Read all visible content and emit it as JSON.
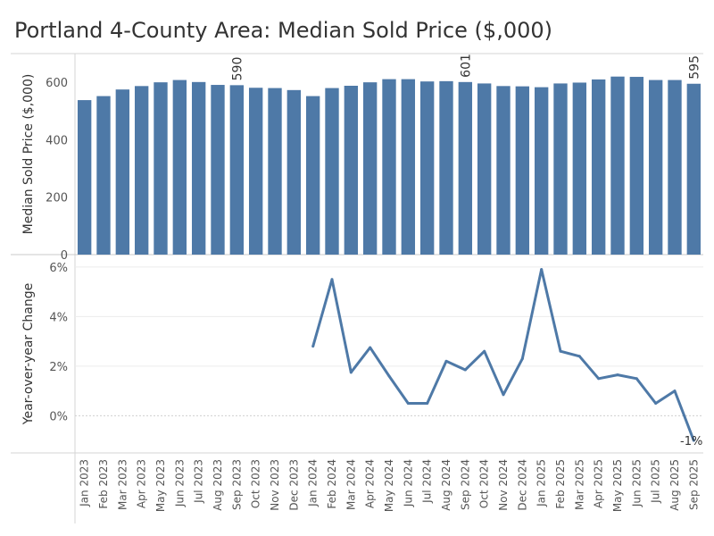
{
  "title": "Portland 4-County Area: Median Sold Price ($,000)",
  "colors": {
    "bar": "#4e79a7",
    "line": "#4e79a7"
  },
  "chart_data": [
    {
      "type": "bar",
      "ylabel": "Median Sold Price ($,000)",
      "ylim": [
        0,
        700
      ],
      "yticks": [
        0,
        200,
        400,
        600
      ],
      "tick_labels": [
        "0",
        "200",
        "400",
        "600"
      ],
      "grid": false,
      "categories": [
        "Jan 2023",
        "Feb 2023",
        "Mar 2023",
        "Apr 2023",
        "May 2023",
        "Jun 2023",
        "Jul 2023",
        "Aug 2023",
        "Sep 2023",
        "Oct 2023",
        "Nov 2023",
        "Dec 2023",
        "Jan 2024",
        "Feb 2024",
        "Mar 2024",
        "Apr 2024",
        "May 2024",
        "Jun 2024",
        "Jul 2024",
        "Aug 2024",
        "Sep 2024",
        "Oct 2024",
        "Nov 2024",
        "Dec 2024",
        "Jan 2025",
        "Feb 2025",
        "Mar 2025",
        "Apr 2025",
        "May 2025",
        "Jun 2025",
        "Jul 2025",
        "Aug 2025",
        "Sep 2025"
      ],
      "values": [
        538,
        552,
        575,
        587,
        600,
        608,
        601,
        591,
        590,
        581,
        580,
        573,
        552,
        580,
        588,
        600,
        611,
        611,
        603,
        604,
        601,
        596,
        587,
        586,
        583,
        596,
        599,
        610,
        620,
        619,
        608,
        608,
        595
      ],
      "data_labels": [
        {
          "category": "Sep 2023",
          "text": "590"
        },
        {
          "category": "Sep 2024",
          "text": "601"
        },
        {
          "category": "Sep 2025",
          "text": "595"
        }
      ]
    },
    {
      "type": "line",
      "ylabel": "Year-over-year Change",
      "ylim": [
        -1.5,
        6.5
      ],
      "yticks": [
        0,
        2,
        4,
        6
      ],
      "tick_labels": [
        "0%",
        "2%",
        "4%",
        "6%"
      ],
      "grid": true,
      "categories": [
        "Jan 2024",
        "Feb 2024",
        "Mar 2024",
        "Apr 2024",
        "May 2024",
        "Jun 2024",
        "Jul 2024",
        "Aug 2024",
        "Sep 2024",
        "Oct 2024",
        "Nov 2024",
        "Dec 2024",
        "Jan 2025",
        "Feb 2025",
        "Mar 2025",
        "Apr 2025",
        "May 2025",
        "Jun 2025",
        "Jul 2025",
        "Aug 2025",
        "Sep 2025"
      ],
      "values": [
        2.8,
        5.5,
        1.75,
        2.75,
        1.6,
        0.5,
        0.5,
        2.2,
        1.85,
        2.6,
        0.85,
        2.3,
        5.9,
        2.6,
        2.4,
        1.5,
        1.65,
        1.5,
        0.5,
        1.0,
        -1.0
      ],
      "data_labels": [
        {
          "category": "Sep 2025",
          "text": "-1%"
        }
      ]
    }
  ]
}
